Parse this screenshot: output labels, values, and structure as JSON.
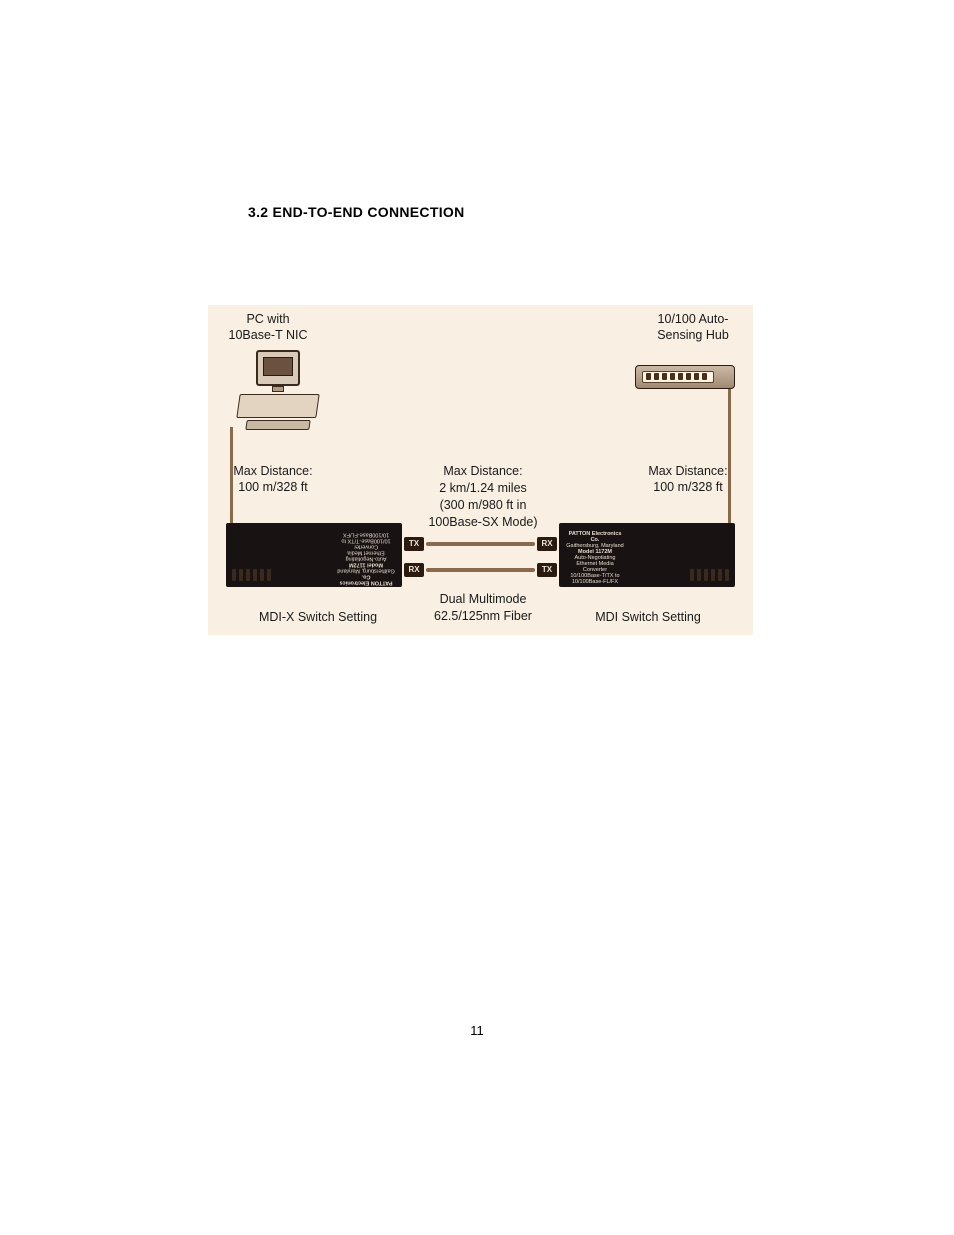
{
  "heading": "3.2  END-TO-END CONNECTION",
  "page_number": "11",
  "diagram": {
    "background_color": "#f9efe2",
    "pc_label": "PC with\n10Base-T NIC",
    "hub_label": "10/100 Auto-\nSensing Hub",
    "distance_left": "Max Distance:\n100 m/328 ft",
    "distance_mid": "Max Distance:\n2 km/1.24 miles\n(300 m/980 ft in\n100Base-SX Mode)",
    "distance_right": "Max Distance:\n100 m/328 ft",
    "mdi_x_label": "MDI-X Switch Setting",
    "fiber_label": "Dual Multimode\n62.5/125nm Fiber",
    "mdi_label": "MDI Switch Setting",
    "tx": "TX",
    "rx": "RX",
    "converter_brand": "PATTON Electronics Co.",
    "converter_model": "Model 1172M",
    "converter_desc": "Auto-Negotiating Ethernet Media Converter\n10/100Base-T/TX to 10/100Base-FL/FX",
    "converter_location": "Gaithersburg, Maryland",
    "colors": {
      "text": "#1a1a1a",
      "device_dark": "#181212",
      "device_light": "#e3d4c2",
      "cable": "#8a6a4c",
      "badge_bg": "#2a1a10",
      "badge_fg": "#f0e4d4"
    }
  }
}
